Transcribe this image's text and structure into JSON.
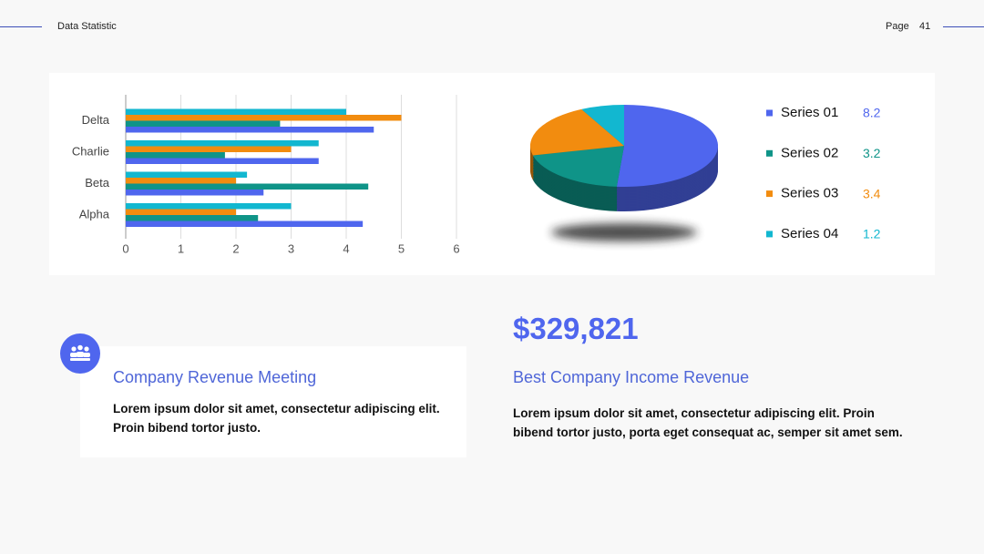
{
  "header": {
    "title": "Data Statistic",
    "page_label": "Page",
    "page_number": "41"
  },
  "chart_data": [
    {
      "type": "bar",
      "orientation": "horizontal",
      "categories": [
        "Alpha",
        "Beta",
        "Charlie",
        "Delta"
      ],
      "series": [
        {
          "color": "#4f66ee",
          "values": [
            4.3,
            2.5,
            3.5,
            4.5
          ]
        },
        {
          "color": "#0f9488",
          "values": [
            2.4,
            4.4,
            1.8,
            2.8
          ]
        },
        {
          "color": "#f28c0f",
          "values": [
            2.0,
            2.0,
            3.0,
            5.0
          ]
        },
        {
          "color": "#12b7d0",
          "values": [
            3.0,
            2.2,
            3.5,
            4.0
          ]
        }
      ],
      "xlim": [
        0,
        6
      ],
      "xticks": [
        0,
        1,
        2,
        3,
        4,
        5,
        6
      ],
      "grid": true
    },
    {
      "type": "pie",
      "categories": [
        "Series 01",
        "Series 02",
        "Series 03",
        "Series 04"
      ],
      "values": [
        8.2,
        3.2,
        3.4,
        1.2
      ],
      "colors": [
        "#4f66ee",
        "#0f9488",
        "#f28c0f",
        "#12b7d0"
      ]
    }
  ],
  "meeting": {
    "title": "Company Revenue Meeting",
    "text": "Lorem ipsum dolor sit amet, consectetur adipiscing elit. Proin bibend tortor justo."
  },
  "income": {
    "amount": "$329,821",
    "title": "Best Company Income Revenue",
    "text": "Lorem ipsum dolor sit amet, consectetur adipiscing elit. Proin bibend tortor justo, porta eget consequat ac, semper sit amet sem."
  }
}
